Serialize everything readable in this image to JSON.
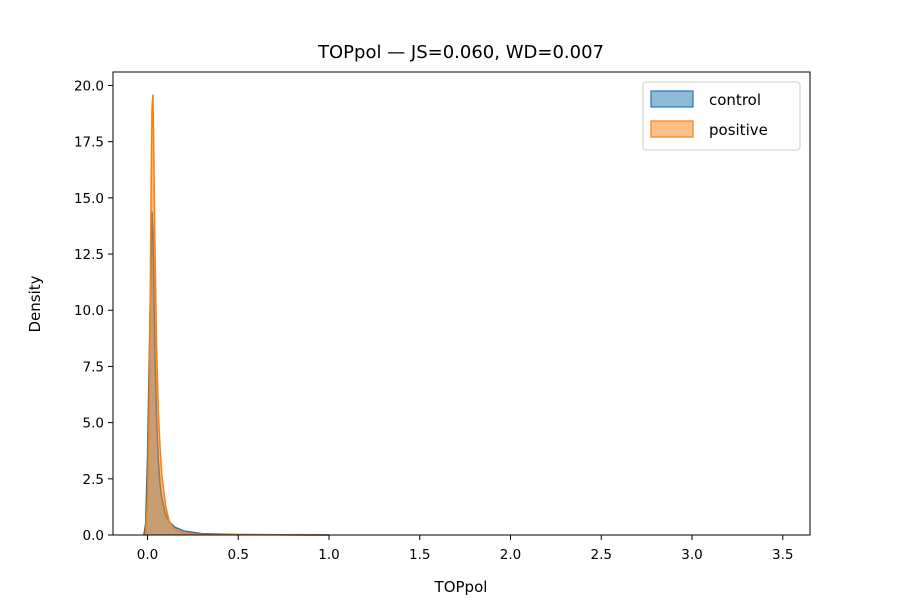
{
  "chart_data": {
    "type": "area",
    "title": "TOPpol — JS=0.060, WD=0.007",
    "xlabel": "TOPpol",
    "ylabel": "Density",
    "xlim": [
      -0.19,
      3.65
    ],
    "ylim": [
      0,
      20.6
    ],
    "xticks": [
      0.0,
      0.5,
      1.0,
      1.5,
      2.0,
      2.5,
      3.0,
      3.5
    ],
    "xtick_labels": [
      "0.0",
      "0.5",
      "1.0",
      "1.5",
      "2.0",
      "2.5",
      "3.0",
      "3.5"
    ],
    "yticks": [
      0,
      2.5,
      5.0,
      7.5,
      10.0,
      12.5,
      15.0,
      17.5,
      20.0
    ],
    "ytick_labels": [
      "0.0",
      "2.5",
      "5.0",
      "7.5",
      "10.0",
      "12.5",
      "15.0",
      "17.5",
      "20.0"
    ],
    "grid": false,
    "legend_position": "top-right",
    "series": [
      {
        "name": "control",
        "color": "#1f77b4",
        "fill": "#8fbbd9",
        "x": [
          -0.02,
          -0.01,
          0.0,
          0.01,
          0.02,
          0.025,
          0.03,
          0.035,
          0.04,
          0.05,
          0.06,
          0.07,
          0.08,
          0.1,
          0.12,
          0.15,
          0.2,
          0.3,
          0.5,
          0.7,
          1.0
        ],
        "y": [
          0.0,
          0.5,
          3.5,
          8.0,
          12.5,
          14.4,
          13.5,
          11.0,
          8.5,
          5.2,
          3.3,
          2.2,
          1.6,
          0.9,
          0.6,
          0.35,
          0.18,
          0.06,
          0.02,
          0.01,
          0.0
        ]
      },
      {
        "name": "positive",
        "color": "#ff7f0e",
        "fill": "#ffbf87",
        "x": [
          -0.01,
          0.0,
          0.01,
          0.015,
          0.02,
          0.025,
          0.03,
          0.035,
          0.04,
          0.05,
          0.06,
          0.07,
          0.08,
          0.1,
          0.12,
          0.15,
          0.2,
          0.3,
          0.5,
          0.7,
          1.0
        ],
        "y": [
          0.0,
          1.5,
          6.0,
          10.5,
          15.5,
          19.0,
          19.6,
          17.0,
          13.5,
          8.5,
          5.5,
          3.8,
          2.6,
          1.3,
          0.6,
          0.25,
          0.08,
          0.03,
          0.02,
          0.01,
          0.0
        ]
      }
    ]
  }
}
